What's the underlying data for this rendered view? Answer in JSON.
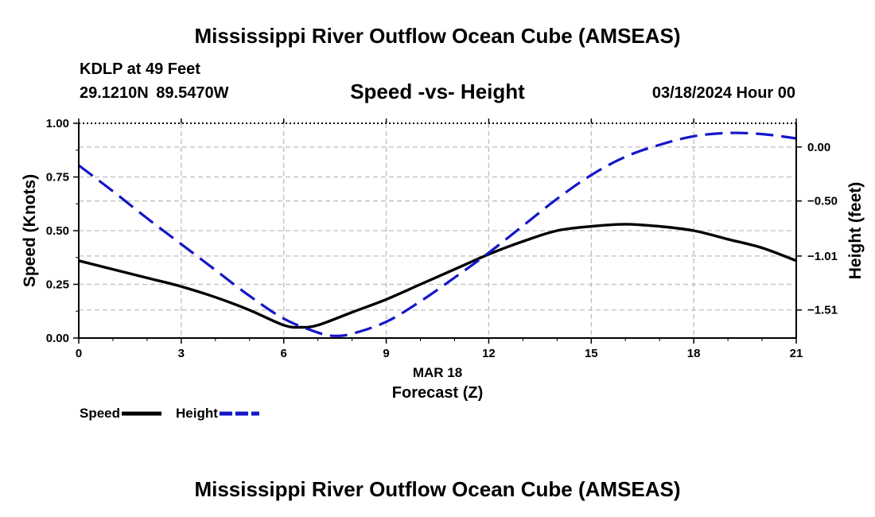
{
  "header": {
    "title": "Mississippi River Outflow Ocean Cube (AMSEAS)",
    "station": "KDLP at 49 Feet",
    "coords": "29.1210N  89.5470W",
    "subtitle": "Speed -vs- Height",
    "datetime": "03/18/2024 Hour 00"
  },
  "footer": {
    "title": "Mississippi River Outflow Ocean Cube (AMSEAS)"
  },
  "chart_data": {
    "type": "line",
    "x_ticks": [
      0,
      3,
      6,
      9,
      12,
      15,
      18,
      21
    ],
    "x_date_label": "MAR 18",
    "xlabel": "Forecast (Z)",
    "xlim": [
      0,
      21
    ],
    "ylabel_left": "Speed (Knots)",
    "ylim_left": [
      0,
      1.0
    ],
    "y_ticks_left": [
      "0.00",
      "0.25",
      "0.50",
      "0.75",
      "1.00"
    ],
    "ylabel_right": "Height (feet)",
    "ylim_right": [
      -1.77,
      0.22
    ],
    "y_ticks_right": [
      {
        "value": 0.0,
        "label": "0.00"
      },
      {
        "value": -0.5,
        "label": "−0.50"
      },
      {
        "value": -1.01,
        "label": "−1.01"
      },
      {
        "value": -1.51,
        "label": "−1.51"
      }
    ],
    "grid": true,
    "series": [
      {
        "name": "Speed",
        "axis": "left",
        "color": "#000000",
        "style": "solid",
        "x": [
          0,
          1,
          2,
          3,
          4,
          5,
          6,
          6.5,
          7,
          8,
          9,
          10,
          11,
          12,
          13,
          14,
          15,
          16,
          17,
          18,
          19,
          20,
          21
        ],
        "values": [
          0.36,
          0.32,
          0.28,
          0.24,
          0.19,
          0.13,
          0.06,
          0.05,
          0.06,
          0.12,
          0.18,
          0.25,
          0.32,
          0.39,
          0.45,
          0.5,
          0.52,
          0.53,
          0.52,
          0.5,
          0.46,
          0.42,
          0.36
        ]
      },
      {
        "name": "Height",
        "axis": "right",
        "color": "#1515c8",
        "style": "dashed",
        "x": [
          0,
          1,
          2,
          3,
          4,
          5,
          6,
          7,
          7.5,
          8,
          9,
          10,
          11,
          12,
          13,
          14,
          15,
          16,
          17,
          18,
          19,
          20,
          21
        ],
        "values": [
          -0.17,
          -0.41,
          -0.66,
          -0.9,
          -1.14,
          -1.38,
          -1.59,
          -1.72,
          -1.75,
          -1.73,
          -1.62,
          -1.43,
          -1.21,
          -0.98,
          -0.73,
          -0.48,
          -0.26,
          -0.09,
          0.02,
          0.1,
          0.13,
          0.12,
          0.08
        ]
      }
    ],
    "legend": [
      {
        "label": "Speed",
        "color": "#000000",
        "style": "solid"
      },
      {
        "label": "Height",
        "color": "#1515c8",
        "style": "dashed"
      }
    ]
  }
}
